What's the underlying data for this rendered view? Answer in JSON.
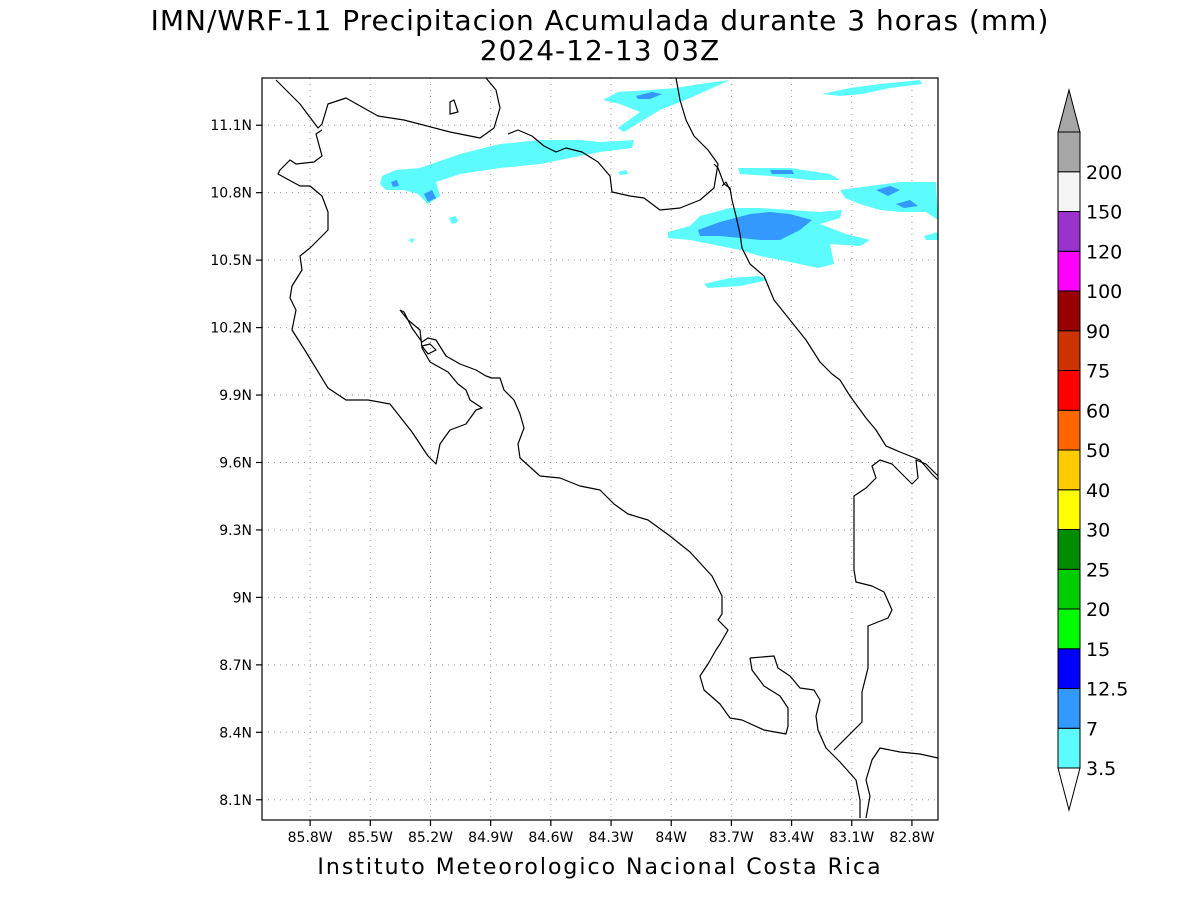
{
  "title": {
    "line1": "IMN/WRF-11 Precipitacion Acumulada durante 3 horas (mm)",
    "line2": "2024-12-13 03Z"
  },
  "footer": "Instituto Meteorologico Nacional Costa Rica",
  "map": {
    "lon_range": [
      -86.04,
      -82.67
    ],
    "lat_range": [
      8.01,
      11.31
    ],
    "lat_ticks": [
      "11.1N",
      "10.8N",
      "10.5N",
      "10.2N",
      "9.9N",
      "9.6N",
      "9.3N",
      "9N",
      "8.7N",
      "8.4N",
      "8.1N"
    ],
    "lon_ticks": [
      "85.8W",
      "85.5W",
      "85.2W",
      "84.9W",
      "84.6W",
      "84.3W",
      "84W",
      "83.7W",
      "83.4W",
      "83.1W",
      "82.8W"
    ],
    "grid": true
  },
  "legend": {
    "levels": [
      "3.5",
      "7",
      "12.5",
      "15",
      "20",
      "25",
      "30",
      "40",
      "50",
      "60",
      "75",
      "90",
      "100",
      "120",
      "150",
      "200"
    ],
    "colors": [
      "#5cfcfc",
      "#3399ff",
      "#0000ff",
      "#00fc00",
      "#00cc00",
      "#008c00",
      "#ffff00",
      "#ffcc00",
      "#ff6600",
      "#ff0000",
      "#cc3300",
      "#990000",
      "#ff00ff",
      "#9933cc",
      "#f5f5f5",
      "#a6a6a6"
    ]
  }
}
